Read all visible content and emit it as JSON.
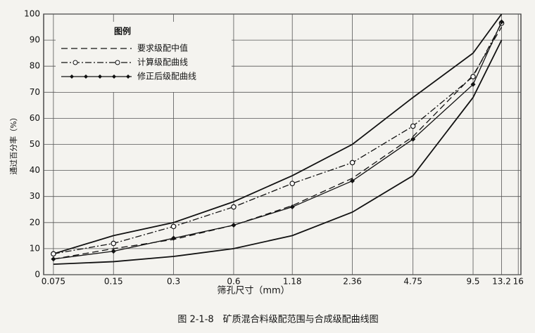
{
  "chart_data": {
    "type": "line",
    "caption": "图 2-1-8　矿质混合料级配范围与合成级配曲线图",
    "x_label": "筛孔尺寸（mm）",
    "y_label": "通过百分率（%）",
    "legend_title": "图例",
    "legend": "upper left",
    "x_scale": "log",
    "grid": true,
    "x": [
      0.075,
      0.15,
      0.3,
      0.6,
      1.18,
      2.36,
      4.75,
      9.5,
      13.2
    ],
    "xlim": [
      0.067,
      16.5
    ],
    "xticks": [
      0.075,
      0.15,
      0.3,
      0.6,
      1.18,
      2.36,
      4.75,
      9.5,
      13.2,
      16
    ],
    "ylim": [
      0,
      100
    ],
    "yticks": [
      0,
      10,
      20,
      30,
      40,
      50,
      60,
      70,
      80,
      90,
      100
    ],
    "series": [
      {
        "color": "#111111",
        "style": "solid",
        "values": [
          8,
          15,
          20,
          28,
          38,
          50,
          68,
          85,
          100
        ]
      },
      {
        "color": "#111111",
        "style": "solid",
        "values": [
          4,
          5,
          7,
          10,
          15,
          24,
          38,
          68,
          90
        ]
      },
      {
        "name": "要求级配中值",
        "color": "#111111",
        "style": "dashed",
        "values": [
          6,
          10,
          13.5,
          19,
          26.5,
          37,
          53,
          76.5,
          95
        ]
      },
      {
        "name": "计算级配曲线",
        "color": "#111111",
        "style": "dashdot",
        "marker": "circle",
        "values": [
          8,
          12,
          18.5,
          26,
          35,
          43,
          57,
          76,
          96.5
        ]
      },
      {
        "name": "修正后级配曲线",
        "color": "#111111",
        "style": "solid",
        "marker": "diamond",
        "values": [
          6,
          9,
          14,
          19,
          26,
          36,
          52,
          73,
          97
        ]
      }
    ]
  }
}
